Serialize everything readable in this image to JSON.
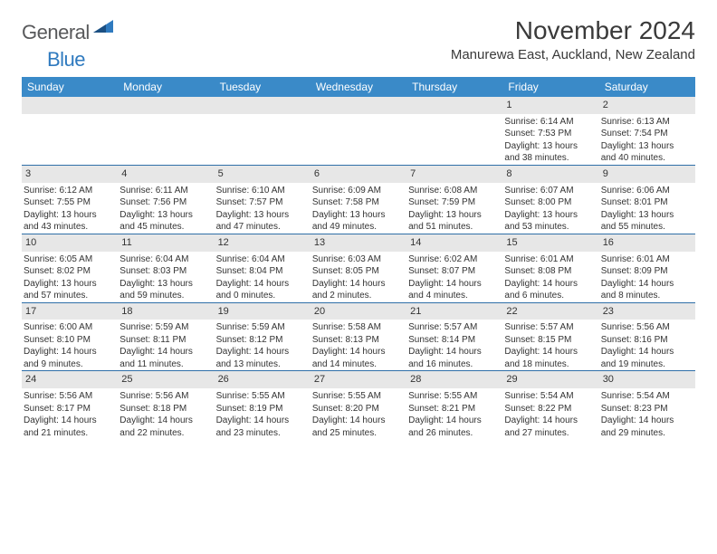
{
  "brand": {
    "part1": "General",
    "part2": "Blue"
  },
  "title": "November 2024",
  "location": "Manurewa East, Auckland, New Zealand",
  "headers": [
    "Sunday",
    "Monday",
    "Tuesday",
    "Wednesday",
    "Thursday",
    "Friday",
    "Saturday"
  ],
  "colors": {
    "header_bg": "#3a8ac8",
    "header_text": "#ffffff",
    "daynum_bg": "#e7e7e7",
    "sep": "#2f6fa8",
    "logo_gray": "#58595b",
    "logo_blue": "#2f7abf"
  },
  "weeks": [
    [
      null,
      null,
      null,
      null,
      null,
      {
        "n": "1",
        "sr": "Sunrise: 6:14 AM",
        "ss": "Sunset: 7:53 PM",
        "dl1": "Daylight: 13 hours",
        "dl2": "and 38 minutes."
      },
      {
        "n": "2",
        "sr": "Sunrise: 6:13 AM",
        "ss": "Sunset: 7:54 PM",
        "dl1": "Daylight: 13 hours",
        "dl2": "and 40 minutes."
      }
    ],
    [
      {
        "n": "3",
        "sr": "Sunrise: 6:12 AM",
        "ss": "Sunset: 7:55 PM",
        "dl1": "Daylight: 13 hours",
        "dl2": "and 43 minutes."
      },
      {
        "n": "4",
        "sr": "Sunrise: 6:11 AM",
        "ss": "Sunset: 7:56 PM",
        "dl1": "Daylight: 13 hours",
        "dl2": "and 45 minutes."
      },
      {
        "n": "5",
        "sr": "Sunrise: 6:10 AM",
        "ss": "Sunset: 7:57 PM",
        "dl1": "Daylight: 13 hours",
        "dl2": "and 47 minutes."
      },
      {
        "n": "6",
        "sr": "Sunrise: 6:09 AM",
        "ss": "Sunset: 7:58 PM",
        "dl1": "Daylight: 13 hours",
        "dl2": "and 49 minutes."
      },
      {
        "n": "7",
        "sr": "Sunrise: 6:08 AM",
        "ss": "Sunset: 7:59 PM",
        "dl1": "Daylight: 13 hours",
        "dl2": "and 51 minutes."
      },
      {
        "n": "8",
        "sr": "Sunrise: 6:07 AM",
        "ss": "Sunset: 8:00 PM",
        "dl1": "Daylight: 13 hours",
        "dl2": "and 53 minutes."
      },
      {
        "n": "9",
        "sr": "Sunrise: 6:06 AM",
        "ss": "Sunset: 8:01 PM",
        "dl1": "Daylight: 13 hours",
        "dl2": "and 55 minutes."
      }
    ],
    [
      {
        "n": "10",
        "sr": "Sunrise: 6:05 AM",
        "ss": "Sunset: 8:02 PM",
        "dl1": "Daylight: 13 hours",
        "dl2": "and 57 minutes."
      },
      {
        "n": "11",
        "sr": "Sunrise: 6:04 AM",
        "ss": "Sunset: 8:03 PM",
        "dl1": "Daylight: 13 hours",
        "dl2": "and 59 minutes."
      },
      {
        "n": "12",
        "sr": "Sunrise: 6:04 AM",
        "ss": "Sunset: 8:04 PM",
        "dl1": "Daylight: 14 hours",
        "dl2": "and 0 minutes."
      },
      {
        "n": "13",
        "sr": "Sunrise: 6:03 AM",
        "ss": "Sunset: 8:05 PM",
        "dl1": "Daylight: 14 hours",
        "dl2": "and 2 minutes."
      },
      {
        "n": "14",
        "sr": "Sunrise: 6:02 AM",
        "ss": "Sunset: 8:07 PM",
        "dl1": "Daylight: 14 hours",
        "dl2": "and 4 minutes."
      },
      {
        "n": "15",
        "sr": "Sunrise: 6:01 AM",
        "ss": "Sunset: 8:08 PM",
        "dl1": "Daylight: 14 hours",
        "dl2": "and 6 minutes."
      },
      {
        "n": "16",
        "sr": "Sunrise: 6:01 AM",
        "ss": "Sunset: 8:09 PM",
        "dl1": "Daylight: 14 hours",
        "dl2": "and 8 minutes."
      }
    ],
    [
      {
        "n": "17",
        "sr": "Sunrise: 6:00 AM",
        "ss": "Sunset: 8:10 PM",
        "dl1": "Daylight: 14 hours",
        "dl2": "and 9 minutes."
      },
      {
        "n": "18",
        "sr": "Sunrise: 5:59 AM",
        "ss": "Sunset: 8:11 PM",
        "dl1": "Daylight: 14 hours",
        "dl2": "and 11 minutes."
      },
      {
        "n": "19",
        "sr": "Sunrise: 5:59 AM",
        "ss": "Sunset: 8:12 PM",
        "dl1": "Daylight: 14 hours",
        "dl2": "and 13 minutes."
      },
      {
        "n": "20",
        "sr": "Sunrise: 5:58 AM",
        "ss": "Sunset: 8:13 PM",
        "dl1": "Daylight: 14 hours",
        "dl2": "and 14 minutes."
      },
      {
        "n": "21",
        "sr": "Sunrise: 5:57 AM",
        "ss": "Sunset: 8:14 PM",
        "dl1": "Daylight: 14 hours",
        "dl2": "and 16 minutes."
      },
      {
        "n": "22",
        "sr": "Sunrise: 5:57 AM",
        "ss": "Sunset: 8:15 PM",
        "dl1": "Daylight: 14 hours",
        "dl2": "and 18 minutes."
      },
      {
        "n": "23",
        "sr": "Sunrise: 5:56 AM",
        "ss": "Sunset: 8:16 PM",
        "dl1": "Daylight: 14 hours",
        "dl2": "and 19 minutes."
      }
    ],
    [
      {
        "n": "24",
        "sr": "Sunrise: 5:56 AM",
        "ss": "Sunset: 8:17 PM",
        "dl1": "Daylight: 14 hours",
        "dl2": "and 21 minutes."
      },
      {
        "n": "25",
        "sr": "Sunrise: 5:56 AM",
        "ss": "Sunset: 8:18 PM",
        "dl1": "Daylight: 14 hours",
        "dl2": "and 22 minutes."
      },
      {
        "n": "26",
        "sr": "Sunrise: 5:55 AM",
        "ss": "Sunset: 8:19 PM",
        "dl1": "Daylight: 14 hours",
        "dl2": "and 23 minutes."
      },
      {
        "n": "27",
        "sr": "Sunrise: 5:55 AM",
        "ss": "Sunset: 8:20 PM",
        "dl1": "Daylight: 14 hours",
        "dl2": "and 25 minutes."
      },
      {
        "n": "28",
        "sr": "Sunrise: 5:55 AM",
        "ss": "Sunset: 8:21 PM",
        "dl1": "Daylight: 14 hours",
        "dl2": "and 26 minutes."
      },
      {
        "n": "29",
        "sr": "Sunrise: 5:54 AM",
        "ss": "Sunset: 8:22 PM",
        "dl1": "Daylight: 14 hours",
        "dl2": "and 27 minutes."
      },
      {
        "n": "30",
        "sr": "Sunrise: 5:54 AM",
        "ss": "Sunset: 8:23 PM",
        "dl1": "Daylight: 14 hours",
        "dl2": "and 29 minutes."
      }
    ]
  ]
}
